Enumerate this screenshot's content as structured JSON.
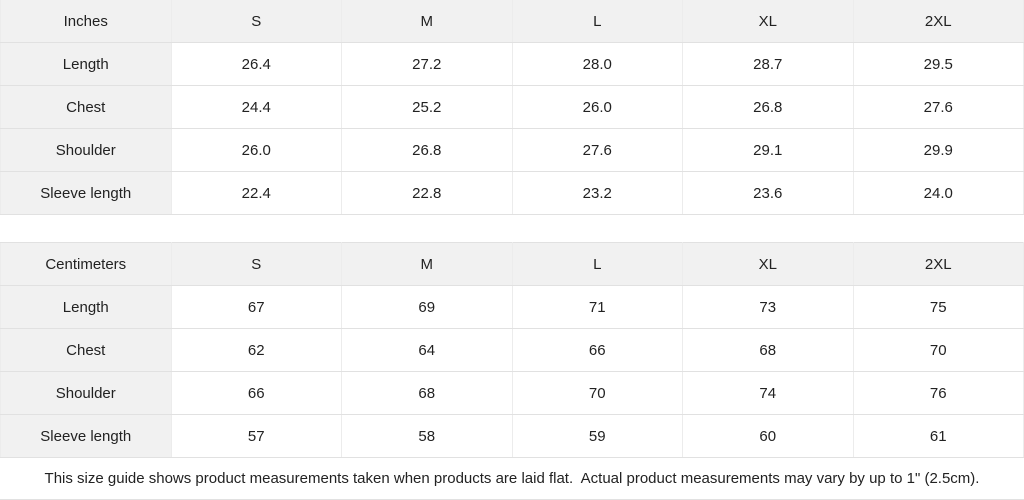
{
  "colors": {
    "header_cell_bg": "#f1f1f1",
    "value_cell_bg": "#ffffff",
    "border_horizontal": "#e1e1e1",
    "border_vertical": "#ececec",
    "text": "#222222"
  },
  "tables": [
    {
      "unit_label": "Inches",
      "sizes": [
        "S",
        "M",
        "L",
        "XL",
        "2XL"
      ],
      "rows": [
        {
          "label": "Length",
          "values": [
            "26.4",
            "27.2",
            "28.0",
            "28.7",
            "29.5"
          ]
        },
        {
          "label": "Chest",
          "values": [
            "24.4",
            "25.2",
            "26.0",
            "26.8",
            "27.6"
          ]
        },
        {
          "label": "Shoulder",
          "values": [
            "26.0",
            "26.8",
            "27.6",
            "29.1",
            "29.9"
          ]
        },
        {
          "label": "Sleeve length",
          "values": [
            "22.4",
            "22.8",
            "23.2",
            "23.6",
            "24.0"
          ]
        }
      ]
    },
    {
      "unit_label": "Centimeters",
      "sizes": [
        "S",
        "M",
        "L",
        "XL",
        "2XL"
      ],
      "rows": [
        {
          "label": "Length",
          "values": [
            "67",
            "69",
            "71",
            "73",
            "75"
          ]
        },
        {
          "label": "Chest",
          "values": [
            "62",
            "64",
            "66",
            "68",
            "70"
          ]
        },
        {
          "label": "Shoulder",
          "values": [
            "66",
            "68",
            "70",
            "74",
            "76"
          ]
        },
        {
          "label": "Sleeve length",
          "values": [
            "57",
            "58",
            "59",
            "60",
            "61"
          ]
        }
      ]
    }
  ],
  "footer": {
    "note": "This size guide shows product measurements taken when products are laid flat.  Actual product measurements may vary by up to 1\" (2.5cm)."
  }
}
